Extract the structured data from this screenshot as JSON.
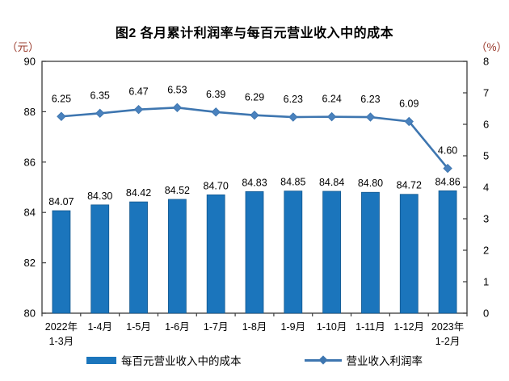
{
  "title": "图2 各月累计利润率与每百元营业收入中的成本",
  "chart_data": {
    "type": "combo",
    "categories": [
      [
        "2022年",
        "1-3月"
      ],
      [
        "1-4月"
      ],
      [
        "1-5月"
      ],
      [
        "1-6月"
      ],
      [
        "1-7月"
      ],
      [
        "1-8月"
      ],
      [
        "1-9月"
      ],
      [
        "1-10月"
      ],
      [
        "1-11月"
      ],
      [
        "1-12月"
      ],
      [
        "2023年",
        "1-2月"
      ]
    ],
    "series": [
      {
        "name": "每百元营业收入中的成本",
        "type": "bar",
        "axis": "left",
        "color": "#1B75BC",
        "border_color": "#14588E",
        "values": [
          84.07,
          84.3,
          84.42,
          84.52,
          84.7,
          84.83,
          84.85,
          84.84,
          84.8,
          84.72,
          84.86
        ]
      },
      {
        "name": "营业收入利润率",
        "type": "line",
        "axis": "right",
        "color": "#3E76B0",
        "marker": "diamond",
        "marker_color": "#4A82BE",
        "values": [
          6.25,
          6.35,
          6.47,
          6.53,
          6.39,
          6.29,
          6.23,
          6.24,
          6.23,
          6.09,
          4.6
        ]
      }
    ],
    "left_axis": {
      "unit": "（元）",
      "range": [
        80,
        90
      ],
      "ticks": [
        80,
        82,
        84,
        86,
        88,
        90
      ]
    },
    "right_axis": {
      "unit": "（%）",
      "range": [
        0,
        8
      ],
      "ticks": [
        0,
        1,
        2,
        3,
        4,
        5,
        6,
        7,
        8
      ]
    },
    "grid": false,
    "legend_position": "bottom",
    "data_labels": true,
    "unit_label_color": "#9A3B2D",
    "axis_color": "#3a3a3a",
    "text_color": "#000000"
  }
}
